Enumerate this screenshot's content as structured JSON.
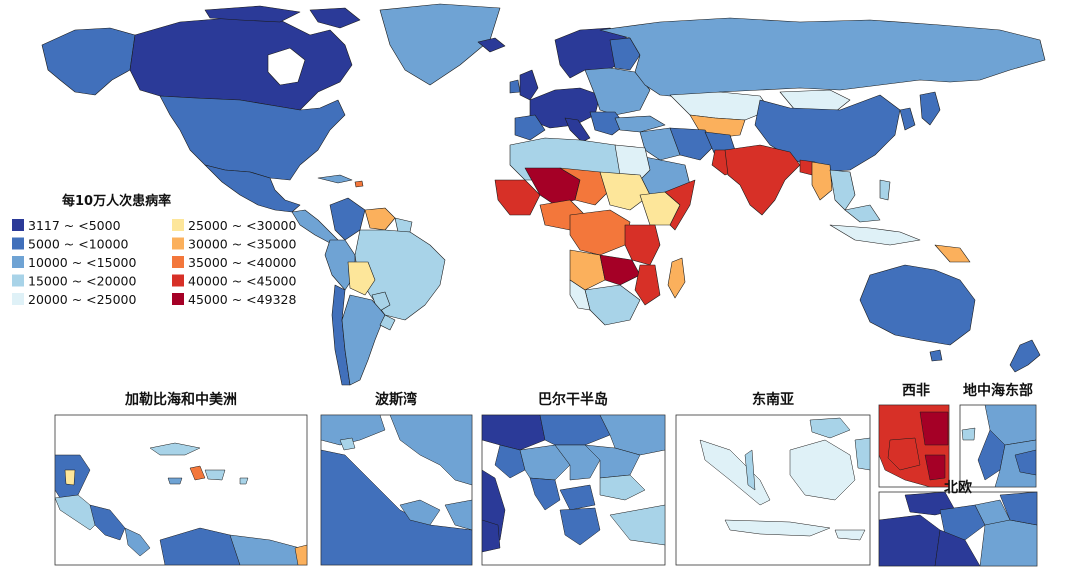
{
  "legend": {
    "title": "每10万人次患病率",
    "items": [
      {
        "label": "3117  ~   <5000",
        "color": "#2b3a98"
      },
      {
        "label": "5000  ~  <10000",
        "color": "#4170bb"
      },
      {
        "label": "10000   ~  <15000",
        "color": "#6fa3d4"
      },
      {
        "label": "15000  ~  <20000",
        "color": "#a8d3e8"
      },
      {
        "label": "20000  ~  <25000",
        "color": "#dff1f7"
      },
      {
        "label": "25000  ~   <30000",
        "color": "#fde69a"
      },
      {
        "label": "30000  ~   <35000",
        "color": "#fbb05c"
      },
      {
        "label": "35000  ~   <40000",
        "color": "#f3773b"
      },
      {
        "label": "40000  ~   <45000",
        "color": "#d73027"
      },
      {
        "label": "45000  ~   <49328",
        "color": "#a50026"
      }
    ]
  },
  "insets": {
    "caribbean": "加勒比海和中美洲",
    "persian_gulf": "波斯湾",
    "balkans": "巴尔干半岛",
    "southeast_asia": "东南亚",
    "west_africa": "西非",
    "east_mediterranean": "地中海东部",
    "northern_europe": "北欧"
  }
}
